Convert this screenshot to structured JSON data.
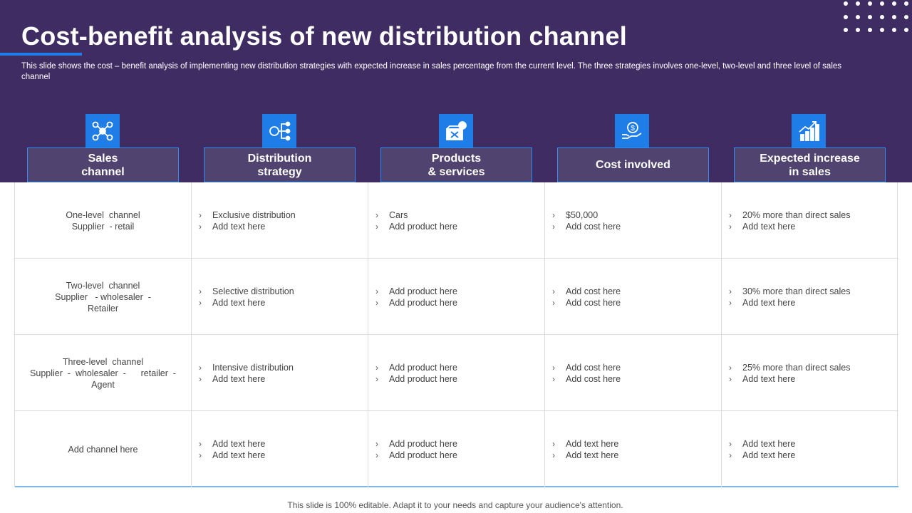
{
  "title": "Cost-benefit analysis of new distribution channel",
  "subtitle": "This slide shows the cost – benefit analysis of implementing new distribution strategies with expected increase in sales percentage from the current level.  The three strategies involves one-level, two-level and three level of sales channel",
  "colors": {
    "banner": "#3f2c63",
    "accent": "#1e7de6",
    "header_box": "#50436f"
  },
  "headers": [
    {
      "label": "Sales\nchannel",
      "icon": "network-icon"
    },
    {
      "label": "Distribution\nstrategy",
      "icon": "hierarchy-icon"
    },
    {
      "label": "Products\n& services",
      "icon": "tools-box-icon"
    },
    {
      "label": "Cost involved",
      "icon": "dollar-hand-icon"
    },
    {
      "label": "Expected increase\nin sales",
      "icon": "growth-chart-icon"
    }
  ],
  "rows": [
    {
      "channel": "One-level  channel\nSupplier  - retail",
      "strategy": [
        "Exclusive distribution",
        "Add text here"
      ],
      "products": [
        "Cars",
        "Add product here"
      ],
      "cost": [
        "$50,000",
        "Add cost here"
      ],
      "increase": [
        "20% more than direct sales",
        "Add text here"
      ]
    },
    {
      "channel": "Two-level  channel\nSupplier   - wholesaler  -\nRetailer",
      "strategy": [
        "Selective distribution",
        "Add text here"
      ],
      "products": [
        "Add product here",
        "Add product here"
      ],
      "cost": [
        "Add cost here",
        "Add cost here"
      ],
      "increase": [
        "30% more than direct sales",
        "Add text here"
      ]
    },
    {
      "channel": "Three-level  channel\nSupplier  -  wholesaler  -      retailer  -\nAgent",
      "strategy": [
        "Intensive distribution",
        "Add text here"
      ],
      "products": [
        "Add product here",
        "Add product here"
      ],
      "cost": [
        "Add cost here",
        "Add cost here"
      ],
      "increase": [
        "25% more than direct sales",
        "Add text here"
      ]
    },
    {
      "channel": "Add channel here",
      "strategy": [
        "Add text here",
        "Add text here"
      ],
      "products": [
        "Add product here",
        "Add product here"
      ],
      "cost": [
        "Add text here",
        "Add text here"
      ],
      "increase": [
        "Add text here",
        "Add text here"
      ]
    }
  ],
  "bullet_glyph": "›",
  "footer": "This slide is 100% editable. Adapt it to your needs and capture your audience's attention."
}
